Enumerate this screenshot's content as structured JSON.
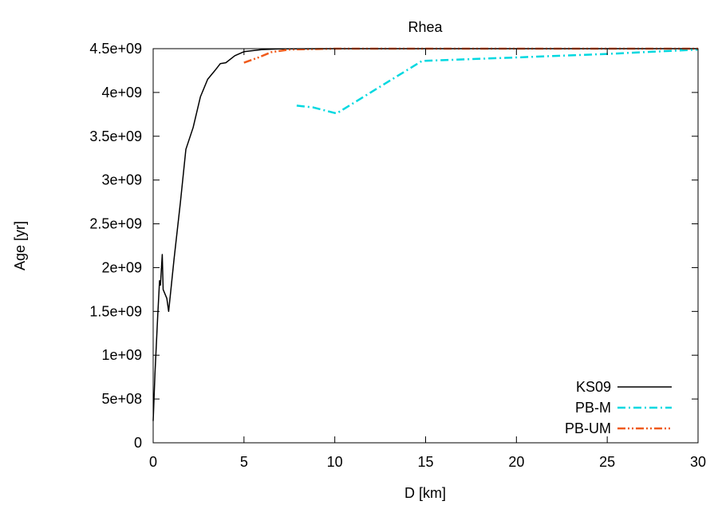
{
  "chart_data": {
    "type": "line",
    "title": "Rhea",
    "xlabel": "D [km]",
    "ylabel": "Age [yr]",
    "xlim": [
      0,
      30
    ],
    "ylim": [
      0,
      4500000000
    ],
    "x_ticks": [
      0,
      5,
      10,
      15,
      20,
      25,
      30
    ],
    "x_tick_labels": [
      "0",
      "5",
      "10",
      "15",
      "20",
      "25",
      "30"
    ],
    "y_ticks": [
      0,
      500000000,
      1000000000,
      1500000000,
      2000000000,
      2500000000,
      3000000000,
      3500000000,
      4000000000,
      4500000000
    ],
    "y_tick_labels": [
      "0",
      "5e+08",
      "1e+09",
      "1.5e+09",
      "2e+09",
      "2.5e+09",
      "3e+09",
      "3.5e+09",
      "4e+09",
      "4.5e+09"
    ],
    "grid": false,
    "legend_position": "bottom-right",
    "series": [
      {
        "name": "KS09",
        "color": "#000000",
        "dash": "solid",
        "points": [
          [
            0.0,
            250000000
          ],
          [
            0.1,
            800000000
          ],
          [
            0.25,
            1450000000
          ],
          [
            0.35,
            1850000000
          ],
          [
            0.4,
            1800000000
          ],
          [
            0.5,
            2150000000
          ],
          [
            0.55,
            1750000000
          ],
          [
            0.75,
            1650000000
          ],
          [
            0.85,
            1500000000
          ],
          [
            1.0,
            1800000000
          ],
          [
            1.15,
            2100000000
          ],
          [
            1.5,
            2750000000
          ],
          [
            1.8,
            3350000000
          ],
          [
            2.2,
            3600000000
          ],
          [
            2.6,
            3950000000
          ],
          [
            3.0,
            4150000000
          ],
          [
            3.4,
            4250000000
          ],
          [
            3.7,
            4330000000
          ],
          [
            4.0,
            4340000000
          ],
          [
            4.5,
            4420000000
          ],
          [
            5.0,
            4465000000
          ],
          [
            6.0,
            4490000000
          ],
          [
            7.0,
            4497000000
          ],
          [
            10.0,
            4500000000
          ],
          [
            20.0,
            4500000000
          ],
          [
            30.0,
            4500000000
          ]
        ]
      },
      {
        "name": "PB-M",
        "color": "#00d8e0",
        "dash": "dash-dot",
        "points": [
          [
            7.9,
            3850000000
          ],
          [
            8.8,
            3830000000
          ],
          [
            10.1,
            3760000000
          ],
          [
            14.8,
            4360000000
          ],
          [
            20.0,
            4400000000
          ],
          [
            25.0,
            4440000000
          ],
          [
            30.0,
            4490000000
          ]
        ]
      },
      {
        "name": "PB-UM",
        "color": "#f05a1a",
        "dash": "dash-dot-dot",
        "points": [
          [
            5.0,
            4340000000
          ],
          [
            5.8,
            4400000000
          ],
          [
            6.5,
            4460000000
          ],
          [
            7.5,
            4490000000
          ],
          [
            10.0,
            4500000000
          ],
          [
            20.0,
            4500000000
          ],
          [
            30.0,
            4500000000
          ]
        ]
      }
    ]
  }
}
